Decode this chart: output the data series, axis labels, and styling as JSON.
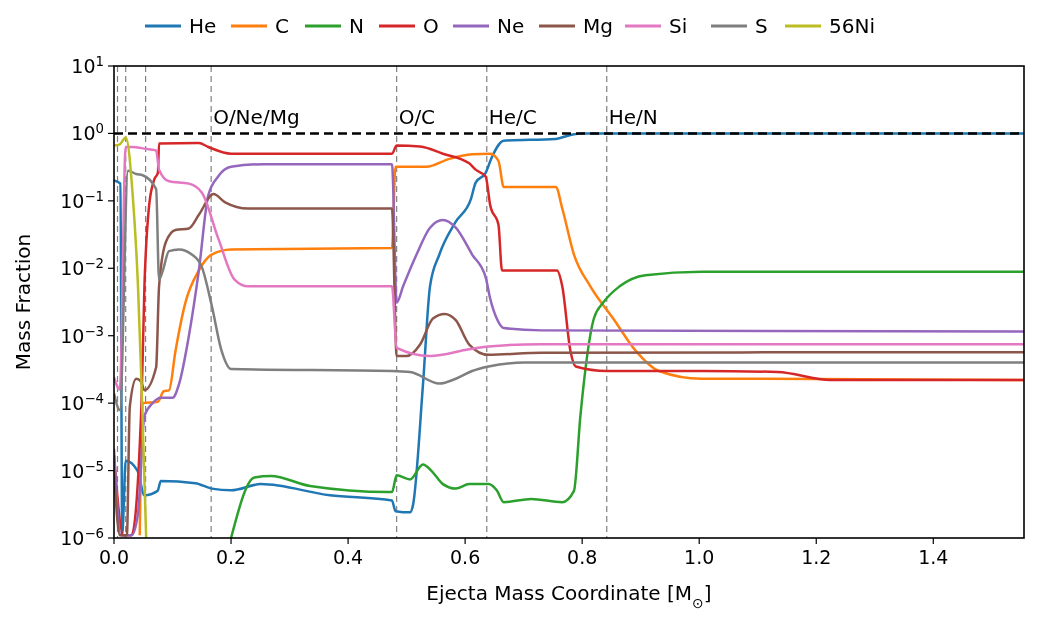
{
  "chart_data": {
    "type": "line",
    "xlabel": "Ejecta Mass Coordinate [M$_{⊙}$]",
    "ylabel": "Mass Fraction",
    "log": "y",
    "legend": "top",
    "xlim": [
      0,
      1.555
    ],
    "ylim": [
      1e-06,
      10
    ],
    "xticks": [
      {
        "value": 0,
        "label": "0.0"
      },
      {
        "value": 0.2,
        "label": "0.2"
      },
      {
        "value": 0.4,
        "label": "0.4"
      },
      {
        "value": 0.6,
        "label": "0.6"
      },
      {
        "value": 0.8,
        "label": "0.8"
      },
      {
        "value": 1,
        "label": "1.0"
      },
      {
        "value": 1.2,
        "label": "1.2"
      },
      {
        "value": 1.4,
        "label": "1.4"
      }
    ],
    "yticks": [
      {
        "value": 1e-06,
        "label": "10$^{−6}$"
      },
      {
        "value": 1e-05,
        "label": "10$^{−5}$"
      },
      {
        "value": 0.0001,
        "label": "10$^{−4}$"
      },
      {
        "value": 0.001,
        "label": "10$^{−3}$"
      },
      {
        "value": 0.01,
        "label": "10$^{−2}$"
      },
      {
        "value": 0.1,
        "label": "10$^{−1}$"
      },
      {
        "value": 1,
        "label": "10$^{0}$"
      },
      {
        "value": 10,
        "label": "10$^{1}$"
      }
    ],
    "ref_lines": [
      {
        "axis": "x",
        "value": 0.006,
        "label": null,
        "color": "#808080",
        "line_style": "dashed"
      },
      {
        "axis": "x",
        "value": 0.02,
        "label": null,
        "color": "#808080",
        "line_style": "dashed"
      },
      {
        "axis": "x",
        "value": 0.054,
        "label": null,
        "color": "#808080",
        "line_style": "dashed"
      },
      {
        "axis": "x",
        "value": 0.166,
        "label": "O/Ne/Mg",
        "color": "#808080",
        "line_style": "dashed"
      },
      {
        "axis": "x",
        "value": 0.483,
        "label": "O/C",
        "color": "#808080",
        "line_style": "dashed"
      },
      {
        "axis": "x",
        "value": 0.637,
        "label": "He/C",
        "color": "#808080",
        "line_style": "dashed"
      },
      {
        "axis": "x",
        "value": 0.842,
        "label": "He/N",
        "color": "#808080",
        "line_style": "dashed"
      },
      {
        "axis": "y",
        "value": 1,
        "label": null,
        "color": "#000000",
        "line_style": "dashed"
      }
    ],
    "series": [
      {
        "name": "He",
        "color": "#1f77b4",
        "x": [
          0,
          0.011,
          0.014,
          0.02,
          0.04,
          0.052,
          0.0745,
          0.08,
          0.139,
          0.167,
          0.2,
          0.251,
          0.369,
          0.475,
          0.481,
          0.506,
          0.511,
          0.528,
          0.54,
          0.556,
          0.584,
          0.61,
          0.618,
          0.635,
          0.646,
          0.666,
          0.755,
          0.78,
          0.8,
          1.555
        ],
        "values": [
          0.2,
          0.18,
          1.1e-06,
          1.4e-05,
          1e-05,
          4.3e-06,
          5e-06,
          7e-06,
          6.5e-06,
          5.4e-06,
          5.1e-06,
          6.3e-06,
          4.3e-06,
          3.6e-06,
          2.5e-06,
          2.4e-06,
          3.1e-06,
          0.00019,
          0.0054,
          0.016,
          0.049,
          0.107,
          0.186,
          0.26,
          0.45,
          0.78,
          0.83,
          0.95,
          1,
          1
        ]
      },
      {
        "name": "C",
        "color": "#ff7f0e",
        "x": [
          0.044,
          0.049,
          0.075,
          0.085,
          0.094,
          0.105,
          0.122,
          0.145,
          0.167,
          0.2,
          0.475,
          0.481,
          0.534,
          0.573,
          0.612,
          0.643,
          0.657,
          0.666,
          0.755,
          0.766,
          0.786,
          0.814,
          0.853,
          0.892,
          0.931,
          1.004,
          1.084,
          1.555
        ],
        "values": [
          1.1e-06,
          0.0001,
          0.000105,
          0.00015,
          0.000155,
          0.00059,
          0.0031,
          0.0093,
          0.016,
          0.019,
          0.02,
          0.32,
          0.32,
          0.42,
          0.49,
          0.5,
          0.39,
          0.16,
          0.16,
          0.077,
          0.016,
          0.0054,
          0.0018,
          0.00059,
          0.0003,
          0.00023,
          0.00023,
          0.00022
        ]
      },
      {
        "name": "N",
        "color": "#2ca02c",
        "x": [
          0.2,
          0.24,
          0.268,
          0.335,
          0.469,
          0.475,
          0.483,
          0.506,
          0.528,
          0.542,
          0.562,
          0.584,
          0.607,
          0.64,
          0.654,
          0.666,
          0.713,
          0.766,
          0.786,
          0.797,
          0.82,
          0.836,
          0.864,
          0.908,
          1.004,
          1.555
        ],
        "values": [
          1e-06,
          7.9e-06,
          8.3e-06,
          5.9e-06,
          4.8e-06,
          4.8e-06,
          8.5e-06,
          7.4e-06,
          1.23e-05,
          1e-05,
          6.3e-06,
          5.4e-06,
          6.3e-06,
          6.3e-06,
          5.1e-06,
          3.4e-06,
          3.8e-06,
          3.4e-06,
          5e-06,
          6.5e-05,
          0.0018,
          0.0031,
          0.0054,
          0.0079,
          0.0089,
          0.0089
        ]
      },
      {
        "name": "O",
        "color": "#d62728",
        "x": [
          0,
          0.016,
          0.03,
          0.047,
          0.052,
          0.06,
          0.069,
          0.075,
          0.077,
          0.145,
          0.161,
          0.2,
          0.475,
          0.483,
          0.523,
          0.562,
          0.607,
          0.618,
          0.635,
          0.643,
          0.657,
          0.663,
          0.757,
          0.766,
          0.78,
          0.789,
          0.842,
          1.004,
          1.134,
          1.224,
          1.555
        ],
        "values": [
          1.7e-05,
          1.1e-06,
          1.1e-06,
          0.0001,
          0.0054,
          0.085,
          0.21,
          0.26,
          0.71,
          0.72,
          0.63,
          0.5,
          0.5,
          0.66,
          0.64,
          0.5,
          0.36,
          0.29,
          0.23,
          0.085,
          0.044,
          0.0093,
          0.0093,
          0.0054,
          0.00059,
          0.00035,
          0.0003,
          0.0003,
          0.00029,
          0.00022,
          0.00022
        ]
      },
      {
        "name": "Ne",
        "color": "#9467bd",
        "x": [
          0,
          0.012,
          0.03,
          0.041,
          0.052,
          0.066,
          0.08,
          0.1,
          0.111,
          0.128,
          0.145,
          0.161,
          0.178,
          0.2,
          0.257,
          0.475,
          0.483,
          0.494,
          0.517,
          0.54,
          0.562,
          0.584,
          0.612,
          0.635,
          0.643,
          0.654,
          0.666,
          0.73,
          1.555
        ],
        "values": [
          2.1e-05,
          1.1e-06,
          1.1e-06,
          2.3e-06,
          6.5e-05,
          0.0001,
          0.00012,
          0.00012,
          0.00019,
          0.001,
          0.0093,
          0.12,
          0.23,
          0.32,
          0.35,
          0.35,
          0.0031,
          0.0054,
          0.016,
          0.04,
          0.052,
          0.04,
          0.016,
          0.0074,
          0.0035,
          0.0018,
          0.0013,
          0.0012,
          0.00115
        ]
      },
      {
        "name": "Mg",
        "color": "#8c564b",
        "x": [
          0,
          0.01,
          0.022,
          0.027,
          0.038,
          0.046,
          0.052,
          0.072,
          0.077,
          0.089,
          0.105,
          0.128,
          0.145,
          0.17,
          0.19,
          0.229,
          0.475,
          0.483,
          0.5,
          0.523,
          0.545,
          0.565,
          0.584,
          0.607,
          0.64,
          0.73,
          1.555
        ],
        "values": [
          1e-05,
          1.1e-06,
          1.1e-06,
          8.9e-05,
          0.00023,
          0.00021,
          0.000155,
          0.00034,
          0.0054,
          0.025,
          0.037,
          0.039,
          0.062,
          0.126,
          0.095,
          0.077,
          0.077,
          0.0005,
          0.0005,
          0.00074,
          0.0018,
          0.0021,
          0.0017,
          0.00074,
          0.00052,
          0.00056,
          0.00057
        ]
      },
      {
        "name": "Si",
        "color": "#e377c2",
        "x": [
          0,
          0.01,
          0.02,
          0.032,
          0.049,
          0.072,
          0.077,
          0.094,
          0.128,
          0.15,
          0.178,
          0.206,
          0.229,
          0.475,
          0.483,
          0.54,
          0.607,
          0.64,
          0.73,
          1.555
        ],
        "values": [
          0.00024,
          0.00016,
          0.63,
          0.63,
          0.6,
          0.56,
          0.29,
          0.195,
          0.18,
          0.133,
          0.028,
          0.0068,
          0.0054,
          0.0054,
          0.00066,
          0.0005,
          0.00063,
          0.00069,
          0.00075,
          0.00075
        ]
      },
      {
        "name": "S",
        "color": "#7f7f7f",
        "x": [
          0,
          0.01,
          0.024,
          0.038,
          0.049,
          0.072,
          0.077,
          0.083,
          0.094,
          0.111,
          0.133,
          0.15,
          0.167,
          0.184,
          0.2,
          0.475,
          0.506,
          0.556,
          0.584,
          0.612,
          0.64,
          0.702,
          1.555
        ],
        "values": [
          0.00014,
          7.9e-05,
          0.28,
          0.25,
          0.24,
          0.15,
          0.0068,
          0.009,
          0.018,
          0.019,
          0.016,
          0.0105,
          0.0028,
          0.00059,
          0.00032,
          0.0003,
          0.00029,
          0.000195,
          0.00023,
          0.0003,
          0.00035,
          0.0004,
          0.0004
        ]
      },
      {
        "name": "56Ni",
        "color": "#bcbd22",
        "x": [
          0,
          0.01,
          0.02,
          0.032,
          0.041,
          0.047,
          0.052,
          0.055
        ],
        "values": [
          0.66,
          0.69,
          0.87,
          0.12,
          0.0054,
          0.0002,
          7e-06,
          1e-06
        ]
      }
    ]
  }
}
